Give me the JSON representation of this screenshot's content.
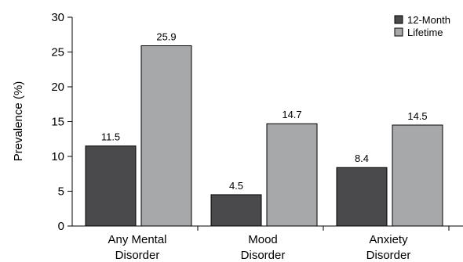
{
  "chart_data": {
    "type": "bar",
    "title": "",
    "xlabel": "",
    "ylabel": "Prevalence (%)",
    "ylim": [
      0,
      30
    ],
    "yticks": [
      0,
      5,
      10,
      15,
      20,
      25,
      30
    ],
    "grid": false,
    "legend_position": "top-right",
    "categories": [
      [
        "Any Mental",
        "Disorder"
      ],
      [
        "Mood",
        "Disorder"
      ],
      [
        "Anxiety",
        "Disorder"
      ]
    ],
    "series": [
      {
        "name": "12-Month",
        "color": "#4a4a4c",
        "values": [
          11.5,
          4.5,
          8.4
        ]
      },
      {
        "name": "Lifetime",
        "color": "#a7a8aa",
        "values": [
          25.9,
          14.7,
          14.5
        ]
      }
    ]
  }
}
